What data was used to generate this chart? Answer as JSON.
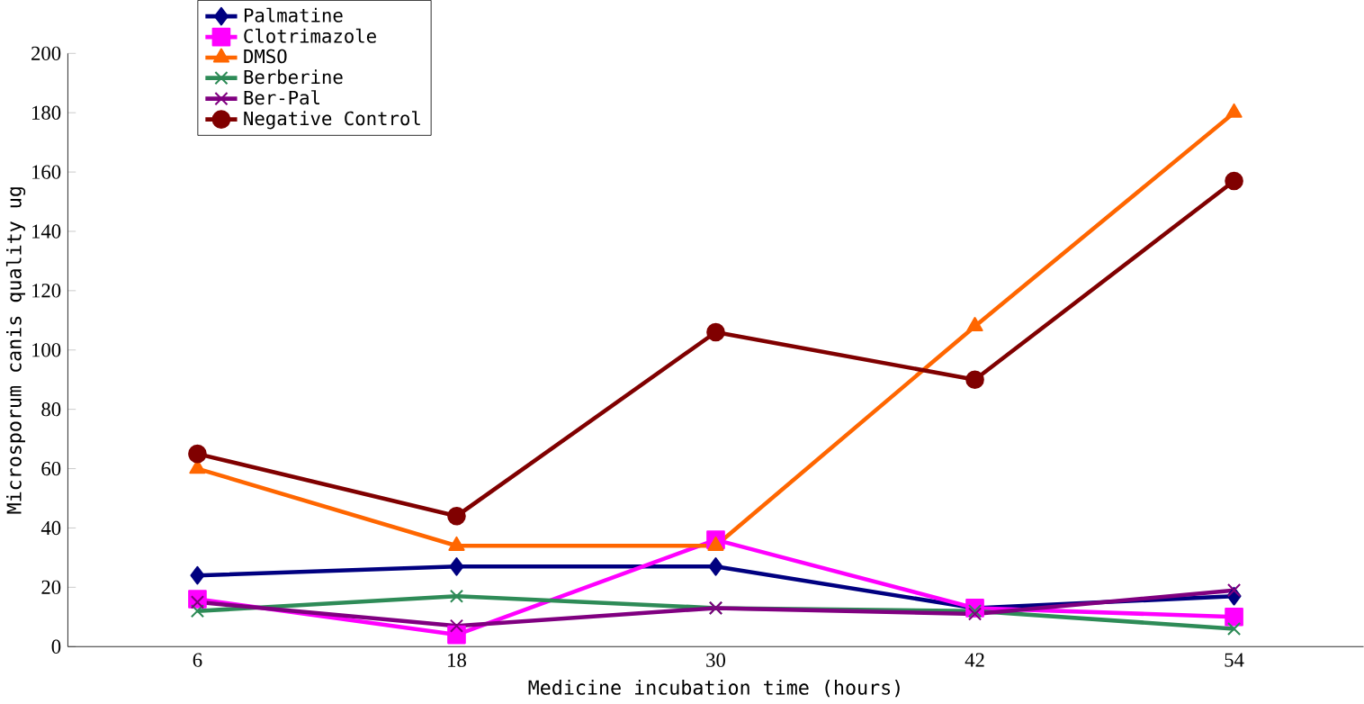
{
  "chart_data": {
    "type": "line",
    "xlabel": "Medicine incubation time (hours)",
    "ylabel": "Microsporum canis quality ug",
    "categories": [
      "6",
      "18",
      "30",
      "42",
      "54"
    ],
    "ylim": [
      0,
      200
    ],
    "yticks": [
      0,
      20,
      40,
      60,
      80,
      100,
      120,
      140,
      160,
      180,
      200
    ],
    "grid": false,
    "legend": "top left",
    "line_style": "solid",
    "series": [
      {
        "name": "Palmatine",
        "color": "#000080",
        "marker": "diamond",
        "values": [
          24,
          27,
          27,
          13,
          17
        ]
      },
      {
        "name": "Clotrimazole",
        "color": "#ff00ff",
        "marker": "square",
        "values": [
          16,
          4,
          36,
          13,
          10
        ]
      },
      {
        "name": "DMSO",
        "color": "#ff6600",
        "marker": "triangle",
        "values": [
          60,
          34,
          34,
          108,
          180
        ]
      },
      {
        "name": "Berberine",
        "color": "#2e8b57",
        "marker": "cross",
        "values": [
          12,
          17,
          13,
          12,
          6
        ]
      },
      {
        "name": "Ber-Pal",
        "color": "#800080",
        "marker": "cross",
        "values": [
          15,
          7,
          13,
          11,
          19
        ]
      },
      {
        "name": "Negative Control",
        "color": "#800000",
        "marker": "circle",
        "values": [
          65,
          44,
          106,
          90,
          157
        ]
      }
    ]
  }
}
